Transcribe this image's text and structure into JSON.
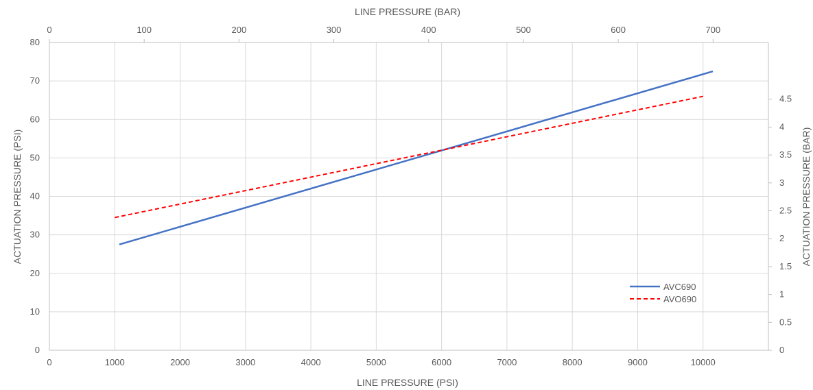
{
  "chart_data": {
    "type": "line",
    "x_axis_bottom": {
      "label": "LINE PRESSURE (PSI)",
      "range": [
        0,
        11000
      ],
      "ticks": [
        0,
        1000,
        2000,
        3000,
        4000,
        5000,
        6000,
        7000,
        8000,
        9000,
        10000
      ]
    },
    "x_axis_top": {
      "label": "LINE PRESSURE (BAR)",
      "range": [
        0,
        758.4
      ],
      "ticks": [
        0,
        100,
        200,
        300,
        400,
        500,
        600,
        700
      ]
    },
    "y_axis_left": {
      "label": "ACTUATION PRESSURE (PSI)",
      "range": [
        0,
        80
      ],
      "ticks": [
        0,
        10,
        20,
        30,
        40,
        50,
        60,
        70,
        80
      ]
    },
    "y_axis_right": {
      "label": "ACTUATION PRESSURE (BAR)",
      "range": [
        0,
        5.516
      ],
      "ticks": [
        "0",
        "0.5",
        "1",
        "1.5",
        "2",
        "2.5",
        "3",
        "3.5",
        "4",
        "4.5"
      ]
    },
    "grid": true,
    "legend_position": "bottom-right",
    "series": [
      {
        "name": "AVC690",
        "color": "#4472C4",
        "style": "solid",
        "x": [
          1070,
          10150
        ],
        "y": [
          27.5,
          72.5
        ]
      },
      {
        "name": "AVO690",
        "color": "#FF0000",
        "style": "dashed",
        "x": [
          1000,
          10000
        ],
        "y": [
          34.5,
          66
        ]
      }
    ]
  }
}
